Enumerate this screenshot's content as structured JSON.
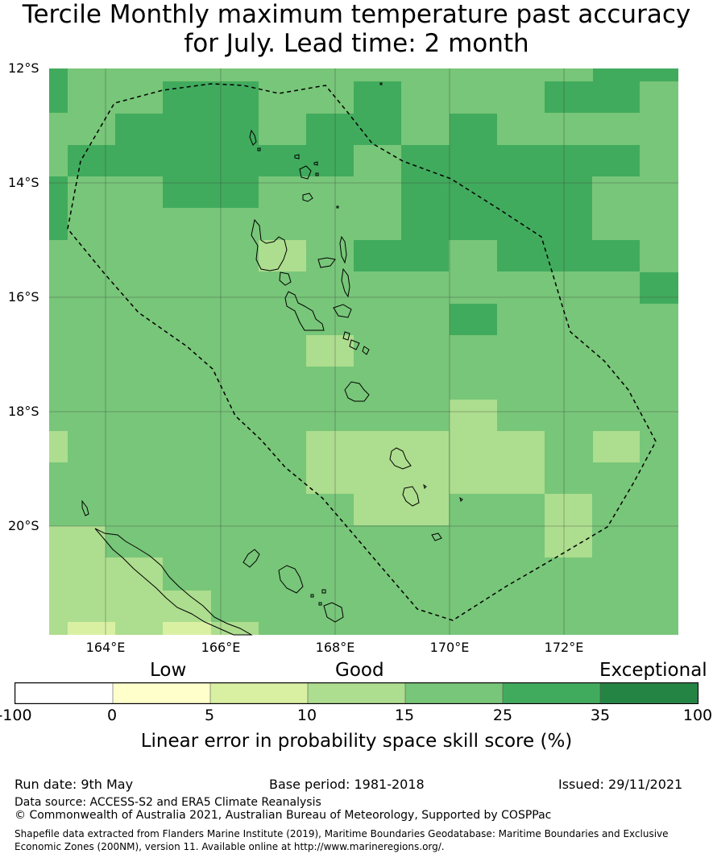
{
  "title": {
    "line1": "Tercile Monthly maximum temperature past accuracy",
    "line2": "for July. Lead time: 2 month"
  },
  "map": {
    "lat_labels": [
      "12°S",
      "14°S",
      "16°S",
      "18°S",
      "20°S"
    ],
    "lon_labels": [
      "164°E",
      "166°E",
      "168°E",
      "170°E",
      "172°E"
    ],
    "extent": {
      "lon": [
        162.0,
        173.0
      ],
      "lat": [
        -21.9,
        -12.0
      ]
    },
    "grid_lines": true,
    "eez_boundary": "dashed black line"
  },
  "colorbar": {
    "categories": {
      "low": "Low",
      "good": "Good",
      "exceptional": "Exceptional"
    },
    "ticks": [
      "-100",
      "0",
      "5",
      "10",
      "15",
      "25",
      "35",
      "100"
    ],
    "colors": [
      "#ffffff",
      "#ffffcc",
      "#d9f0a3",
      "#addd8e",
      "#78c679",
      "#41ab5d",
      "#238443"
    ],
    "title": "Linear error in probability space skill score (%)"
  },
  "footer": {
    "run_date": "Run date: 9th May",
    "base_period": "Base period: 1981-2018",
    "issued": "Issued: 29/11/2021",
    "data_source": "Data source: ACCESS-S2 and ERA5 Climate Reanalysis",
    "copyright": "© Commonwealth of Australia 2021, Australian Bureau of Meteorology, Supported by COSPPac",
    "shapefile_line1": "Shapefile data extracted from Flanders Marine Institute (2019), Maritime Boundaries Geodatabase: Maritime Boundaries and Exclusive",
    "shapefile_line2": "Economic Zones (200NM), version 11. Available online at http://www.marineregions.org/."
  }
}
